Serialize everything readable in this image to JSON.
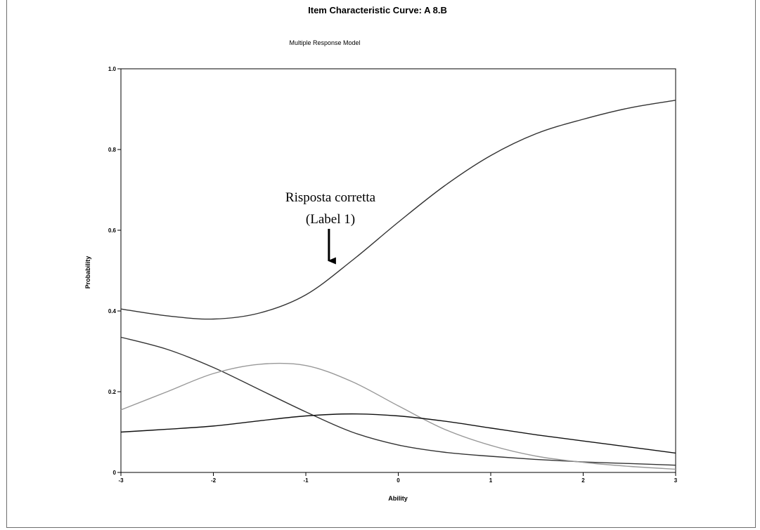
{
  "chart_data": {
    "type": "line",
    "title": "Item Characteristic Curve: A 8.B",
    "subtitle": "Multiple Response Model",
    "xlabel": "Ability",
    "ylabel": "Probability",
    "xlim": [
      -3,
      3
    ],
    "ylim": [
      0,
      1
    ],
    "x_ticks": [
      {
        "value": -3,
        "label": "-3"
      },
      {
        "value": -2,
        "label": "-2"
      },
      {
        "value": -1,
        "label": "-1"
      },
      {
        "value": 0,
        "label": "0"
      },
      {
        "value": 1,
        "label": "1"
      },
      {
        "value": 2,
        "label": "2"
      },
      {
        "value": 3,
        "label": "3"
      }
    ],
    "y_ticks": [
      {
        "value": 0,
        "label": "0"
      },
      {
        "value": 0.2,
        "label": "0.2"
      },
      {
        "value": 0.4,
        "label": "0.4"
      },
      {
        "value": 0.6,
        "label": "0.6"
      },
      {
        "value": 0.8,
        "label": "0.8"
      },
      {
        "value": 1.0,
        "label": "1.0"
      }
    ],
    "grid": false,
    "legend": "none",
    "series": [
      {
        "color": "#333333",
        "x": [
          -3,
          -2.5,
          -2,
          -1.5,
          -1,
          -0.5,
          0,
          0.5,
          1,
          1.5,
          2,
          2.5,
          3
        ],
        "y": [
          0.405,
          0.388,
          0.38,
          0.395,
          0.44,
          0.525,
          0.62,
          0.71,
          0.785,
          0.84,
          0.875,
          0.903,
          0.922
        ]
      },
      {
        "color": "#333333",
        "x": [
          -3,
          -2.5,
          -2,
          -1.5,
          -1,
          -0.5,
          0,
          0.5,
          1,
          1.5,
          2,
          2.5,
          3
        ],
        "y": [
          0.335,
          0.305,
          0.26,
          0.205,
          0.15,
          0.1,
          0.068,
          0.05,
          0.04,
          0.032,
          0.026,
          0.022,
          0.018
        ]
      },
      {
        "color": "#999999",
        "x": [
          -3,
          -2.5,
          -2,
          -1.5,
          -1,
          -0.5,
          0,
          0.5,
          1,
          1.5,
          2,
          2.5,
          3
        ],
        "y": [
          0.155,
          0.2,
          0.245,
          0.268,
          0.265,
          0.225,
          0.165,
          0.107,
          0.067,
          0.04,
          0.025,
          0.015,
          0.008
        ]
      },
      {
        "color": "#111111",
        "x": [
          -3,
          -2.5,
          -2,
          -1.5,
          -1,
          -0.5,
          0,
          0.5,
          1,
          1.5,
          2,
          2.5,
          3
        ],
        "y": [
          0.1,
          0.107,
          0.115,
          0.128,
          0.14,
          0.145,
          0.14,
          0.127,
          0.11,
          0.093,
          0.078,
          0.063,
          0.048
        ]
      }
    ],
    "annotations": [
      {
        "line1": "Risposta corretta",
        "line2": "(Label 1)",
        "arrow_to": {
          "x": -0.75,
          "y": 0.5
        }
      }
    ]
  }
}
